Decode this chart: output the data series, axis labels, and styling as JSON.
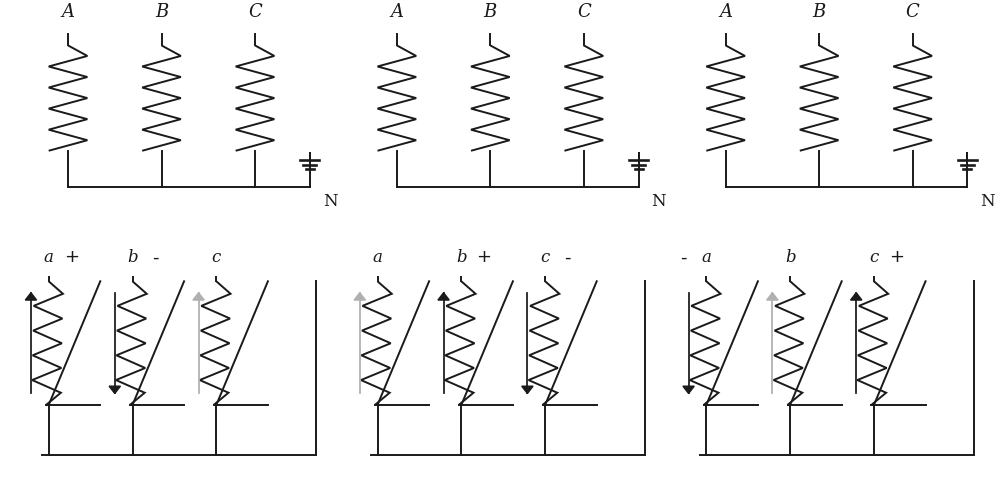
{
  "background": "#ffffff",
  "line_color": "#1a1a1a",
  "gray_color": "#b0b0b0",
  "lw": 1.4,
  "top_panels": {
    "phase_labels": [
      "A",
      "B",
      "C"
    ],
    "neutral_label": "N"
  },
  "bottom_panels": [
    {
      "labels": [
        "a",
        "b",
        "c"
      ],
      "current_dirs": [
        1,
        -1,
        1
      ],
      "gray_phase": 2,
      "pol_labels": [
        "+",
        "-",
        ""
      ],
      "pol_side": [
        "right",
        "right",
        "none"
      ],
      "pol_before": [
        false,
        false,
        false
      ]
    },
    {
      "labels": [
        "a",
        "b",
        "c"
      ],
      "current_dirs": [
        1,
        1,
        -1
      ],
      "gray_phase": 0,
      "pol_labels": [
        "",
        "+",
        "-"
      ],
      "pol_side": [
        "none",
        "right",
        "right"
      ],
      "pol_before": [
        false,
        false,
        false
      ]
    },
    {
      "labels": [
        "a",
        "b",
        "c"
      ],
      "current_dirs": [
        -1,
        1,
        1
      ],
      "gray_phase": 1,
      "pol_labels": [
        "-",
        "",
        "+"
      ],
      "pol_side": [
        "left",
        "none",
        "right"
      ],
      "pol_before": [
        true,
        false,
        false
      ]
    }
  ]
}
